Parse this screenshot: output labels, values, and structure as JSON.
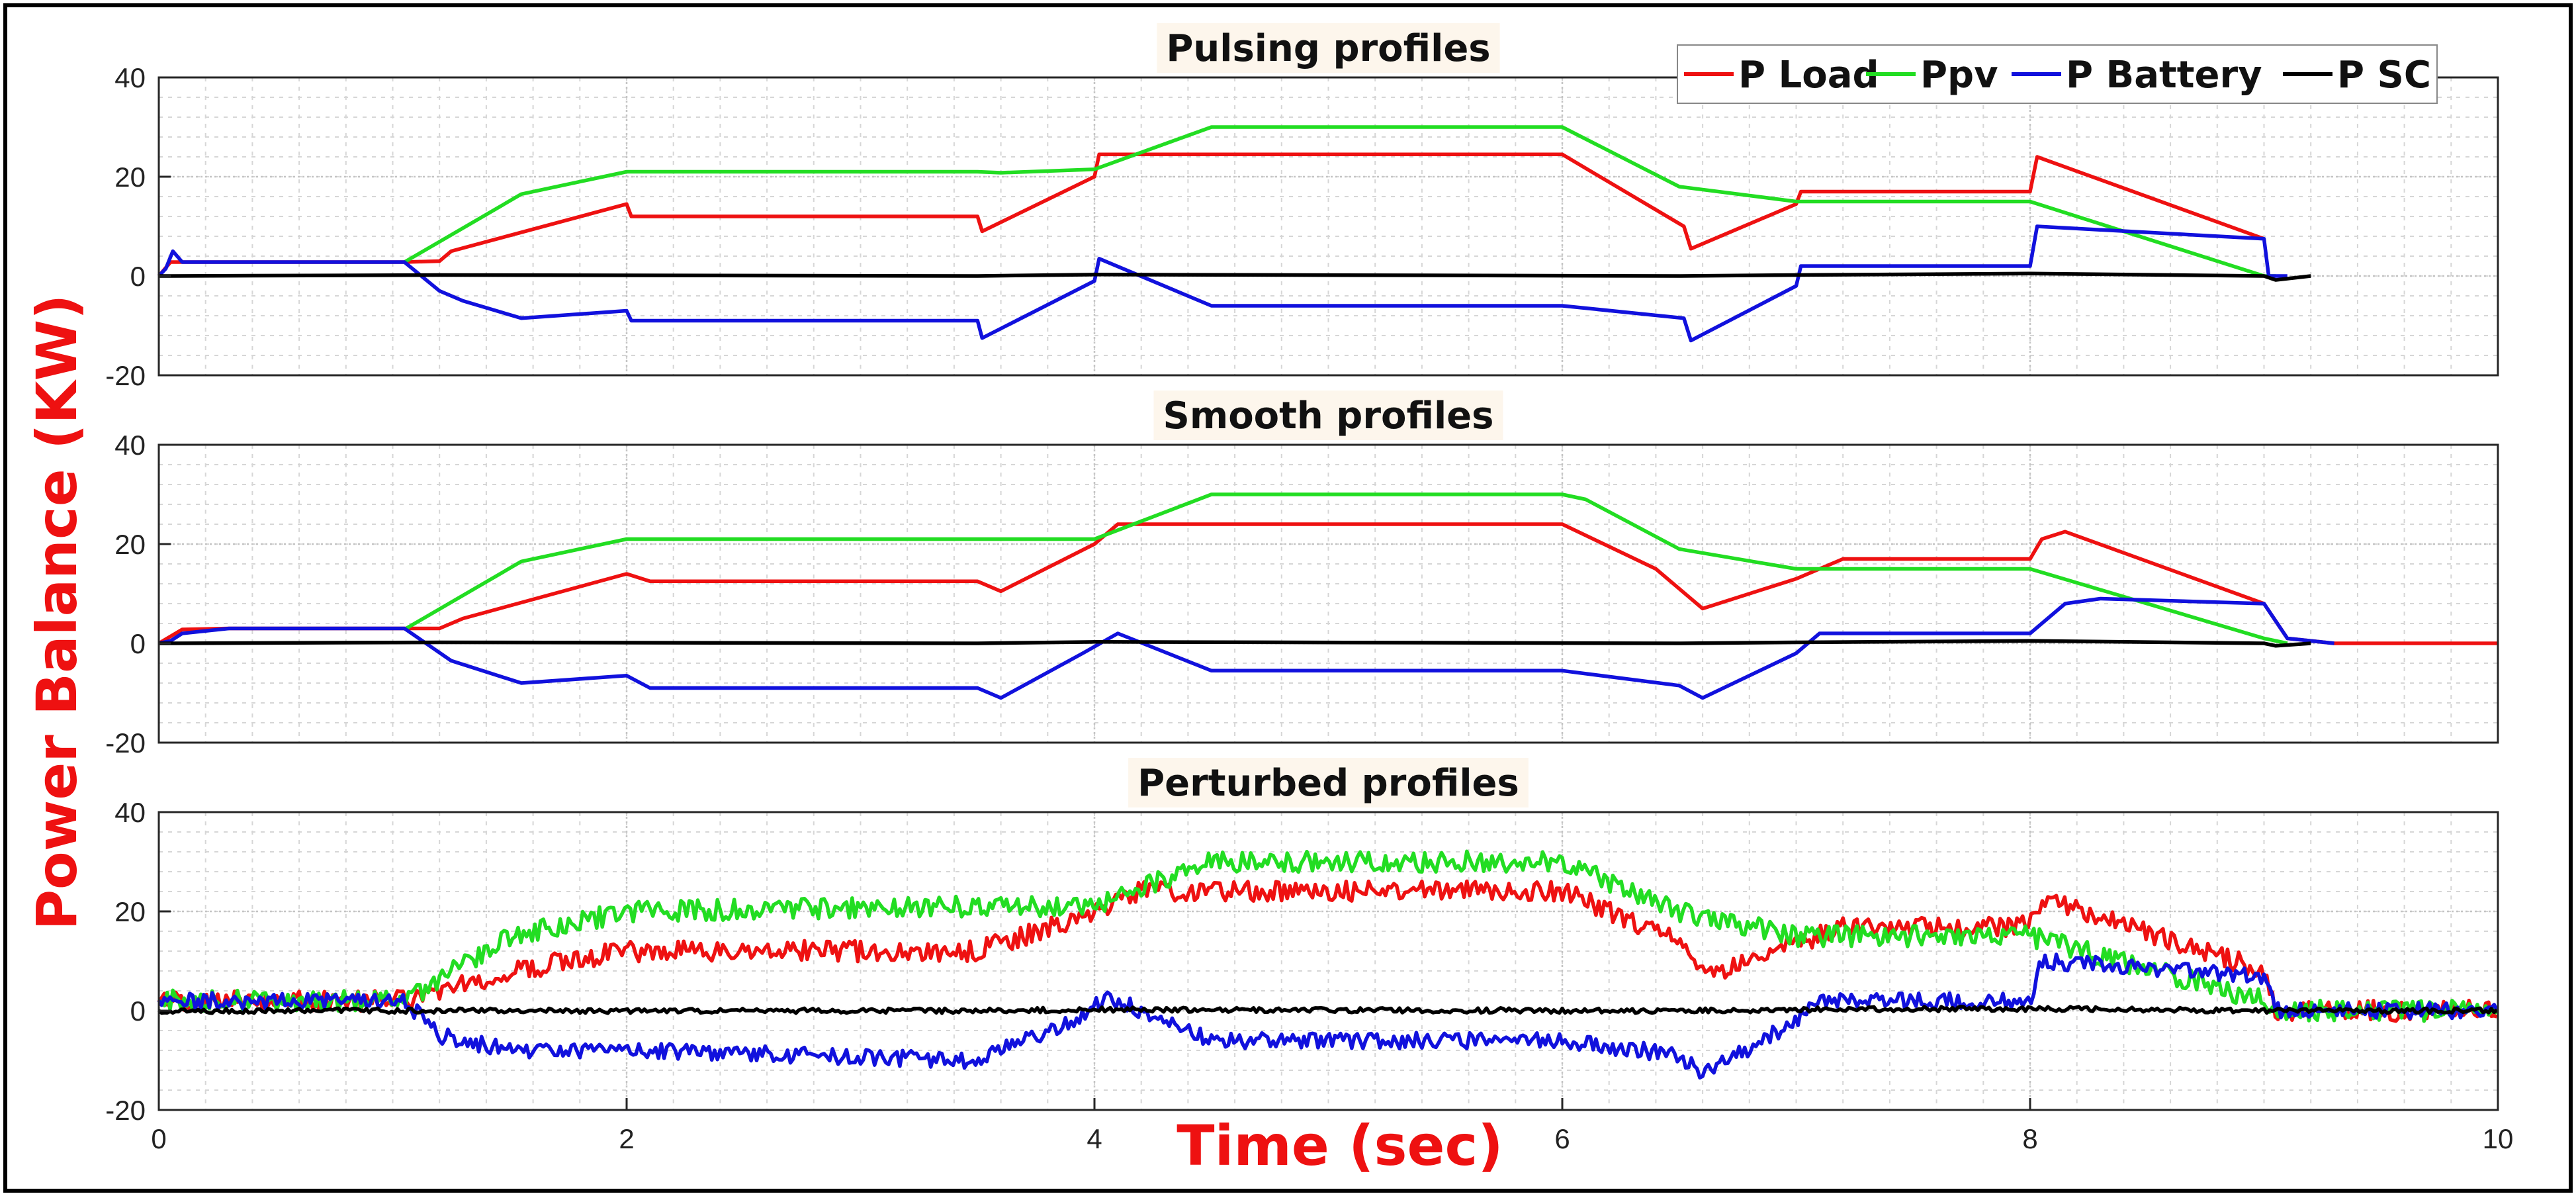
{
  "figure": {
    "ylabel": "Power Balance (KW)",
    "xlabel": "Time (sec)",
    "label_color": "#ee1111"
  },
  "legend": {
    "location": "top-right of first panel",
    "items": [
      {
        "label": "P Load",
        "color": "#ee1111"
      },
      {
        "label": "Ppv",
        "color": "#22dd22"
      },
      {
        "label": "P Battery",
        "color": "#1111dd"
      },
      {
        "label": "P SC",
        "color": "#000000"
      }
    ]
  },
  "chart_data": [
    {
      "type": "line",
      "title": "Pulsing profiles",
      "xlim": [
        0,
        10
      ],
      "ylim": [
        -20,
        40
      ],
      "xticks": [],
      "yticks": [
        40,
        20,
        0,
        -20
      ],
      "ytick_labels": [
        "40",
        "20",
        "0",
        "-20"
      ],
      "grid": true,
      "noise": 0,
      "series": [
        {
          "name": "P Load",
          "color": "#ee1111",
          "x": [
            0,
            0.05,
            1.05,
            1.2,
            1.25,
            2.0,
            2.02,
            3.5,
            3.52,
            4.0,
            4.02,
            6.0,
            6.52,
            6.55,
            7.0,
            7.02,
            8.0,
            8.03,
            9.0,
            9.02,
            10
          ],
          "y": [
            0,
            2.8,
            2.8,
            3,
            5,
            14.5,
            12,
            12,
            9,
            20,
            24.5,
            24.5,
            10,
            5.5,
            14.5,
            17,
            17,
            24,
            7.5,
            null,
            null
          ]
        },
        {
          "name": "Ppv",
          "color": "#22dd22",
          "x": [
            1.05,
            1.55,
            2.0,
            3.5,
            3.6,
            4.0,
            4.5,
            6.0,
            6.5,
            7.0,
            8.0,
            9.0,
            9.05
          ],
          "y": [
            2.8,
            16.5,
            21,
            21,
            20.8,
            21.5,
            30,
            30,
            18,
            15,
            15,
            0,
            0
          ]
        },
        {
          "name": "P Battery",
          "color": "#1111dd",
          "x": [
            0,
            0.03,
            0.06,
            0.1,
            1.05,
            1.2,
            1.3,
            1.55,
            2.0,
            2.02,
            3.5,
            3.52,
            4.0,
            4.02,
            4.5,
            6.0,
            6.52,
            6.55,
            7.0,
            7.02,
            8.0,
            8.03,
            9.0,
            9.02,
            9.1
          ],
          "y": [
            0,
            1.5,
            5,
            2.8,
            2.8,
            -3,
            -5,
            -8.5,
            -7,
            -9,
            -9,
            -12.5,
            -1,
            3.5,
            -6,
            -6,
            -8.5,
            -13,
            -2,
            2,
            2,
            10,
            7.5,
            0,
            0
          ]
        },
        {
          "name": "P SC",
          "color": "#000000",
          "x": [
            0,
            0.05,
            1.2,
            3.5,
            4.0,
            6.5,
            7.0,
            8.0,
            9.0,
            9.05,
            9.2
          ],
          "y": [
            0,
            0,
            0.2,
            0,
            0.3,
            0,
            0.2,
            0.5,
            0,
            -0.8,
            0
          ]
        }
      ]
    },
    {
      "type": "line",
      "title": "Smooth profiles",
      "xlim": [
        0,
        10
      ],
      "ylim": [
        -20,
        40
      ],
      "xticks": [],
      "yticks": [
        40,
        20,
        0,
        -20
      ],
      "ytick_labels": [
        "40",
        "20",
        "0",
        "-20"
      ],
      "grid": true,
      "noise": 0,
      "series": [
        {
          "name": "P Load",
          "color": "#ee1111",
          "x": [
            0,
            0.1,
            0.3,
            1.05,
            1.2,
            1.3,
            2.0,
            2.1,
            3.5,
            3.6,
            4.0,
            4.1,
            6.0,
            6.4,
            6.6,
            7.0,
            7.2,
            8.0,
            8.05,
            8.15,
            9.0,
            9.1,
            9.3,
            10
          ],
          "y": [
            0,
            2.8,
            3,
            3,
            3,
            5,
            14,
            12.5,
            12.5,
            10.5,
            20,
            24,
            24,
            15,
            7,
            13,
            17,
            17,
            21,
            22.5,
            8,
            1,
            0,
            0
          ]
        },
        {
          "name": "Ppv",
          "color": "#22dd22",
          "x": [
            1.05,
            1.55,
            2.0,
            3.5,
            3.6,
            4.0,
            4.5,
            6.0,
            6.1,
            6.5,
            7.0,
            8.0,
            9.0,
            9.1
          ],
          "y": [
            2.8,
            16.5,
            21,
            21,
            21,
            21,
            30,
            30,
            29,
            19,
            15,
            15,
            1,
            0
          ]
        },
        {
          "name": "P Battery",
          "color": "#1111dd",
          "x": [
            0,
            0.05,
            0.1,
            0.3,
            1.05,
            1.25,
            1.55,
            2.0,
            2.1,
            3.5,
            3.6,
            3.95,
            4.1,
            4.5,
            6.0,
            6.5,
            6.6,
            7.0,
            7.1,
            8.0,
            8.15,
            8.3,
            9.0,
            9.1,
            9.3
          ],
          "y": [
            0,
            0.5,
            2,
            3,
            3,
            -3.5,
            -8,
            -6.5,
            -9,
            -9,
            -11,
            -2,
            2,
            -5.5,
            -5.5,
            -8.5,
            -11,
            -2,
            2,
            2,
            8,
            9,
            8,
            1,
            0
          ]
        },
        {
          "name": "P SC",
          "color": "#000000",
          "x": [
            0,
            1.2,
            3.5,
            4.0,
            6.5,
            7.0,
            8.0,
            9.0,
            9.05,
            9.2
          ],
          "y": [
            0,
            0.2,
            0,
            0.3,
            0,
            0.2,
            0.5,
            0,
            -0.5,
            0
          ]
        }
      ]
    },
    {
      "type": "line",
      "title": "Perturbed profiles",
      "xlim": [
        0,
        10
      ],
      "ylim": [
        -20,
        40
      ],
      "xticks": [
        0,
        2,
        4,
        6,
        8,
        10
      ],
      "xtick_labels": [
        "0",
        "2",
        "4",
        "6",
        "8",
        "10"
      ],
      "yticks": [
        40,
        20,
        0,
        -20
      ],
      "ytick_labels": [
        "40",
        "20",
        "0",
        "-20"
      ],
      "grid": true,
      "noise": 1.5,
      "series": [
        {
          "name": "P Load",
          "color": "#ee1111",
          "x": [
            0,
            1.05,
            1.5,
            2.0,
            3.5,
            4.0,
            4.2,
            6.0,
            6.5,
            6.6,
            7.0,
            7.2,
            8.0,
            8.05,
            9.0,
            9.05,
            10
          ],
          "y": [
            2,
            2,
            8,
            12,
            12,
            20,
            24,
            24,
            14,
            7,
            13,
            17,
            17,
            23,
            8,
            0,
            0
          ]
        },
        {
          "name": "Ppv",
          "color": "#22dd22",
          "x": [
            0,
            1.05,
            1.5,
            2.0,
            3.5,
            4.0,
            4.5,
            6.0,
            6.5,
            7.0,
            8.0,
            9.0,
            9.1,
            10
          ],
          "y": [
            2,
            2,
            15,
            20,
            21,
            21,
            30,
            30,
            20,
            15,
            15,
            2,
            0,
            0
          ]
        },
        {
          "name": "P Battery",
          "color": "#1111dd",
          "x": [
            0,
            1.05,
            1.2,
            1.5,
            2.0,
            3.5,
            3.95,
            4.05,
            4.5,
            6.0,
            6.5,
            6.6,
            7.0,
            7.1,
            8.0,
            8.05,
            9.0,
            9.05,
            10
          ],
          "y": [
            2,
            2,
            -5,
            -8,
            -8,
            -10,
            -1,
            3,
            -6,
            -6,
            -9,
            -13,
            -2,
            2,
            2,
            10,
            7,
            0,
            0
          ]
        },
        {
          "name": "P SC",
          "color": "#000000",
          "x": [
            0,
            3.5,
            4.0,
            6.5,
            7.0,
            8.0,
            9.0,
            10
          ],
          "y": [
            0,
            0,
            0.2,
            0,
            0.2,
            0.4,
            0,
            0
          ]
        }
      ]
    }
  ]
}
